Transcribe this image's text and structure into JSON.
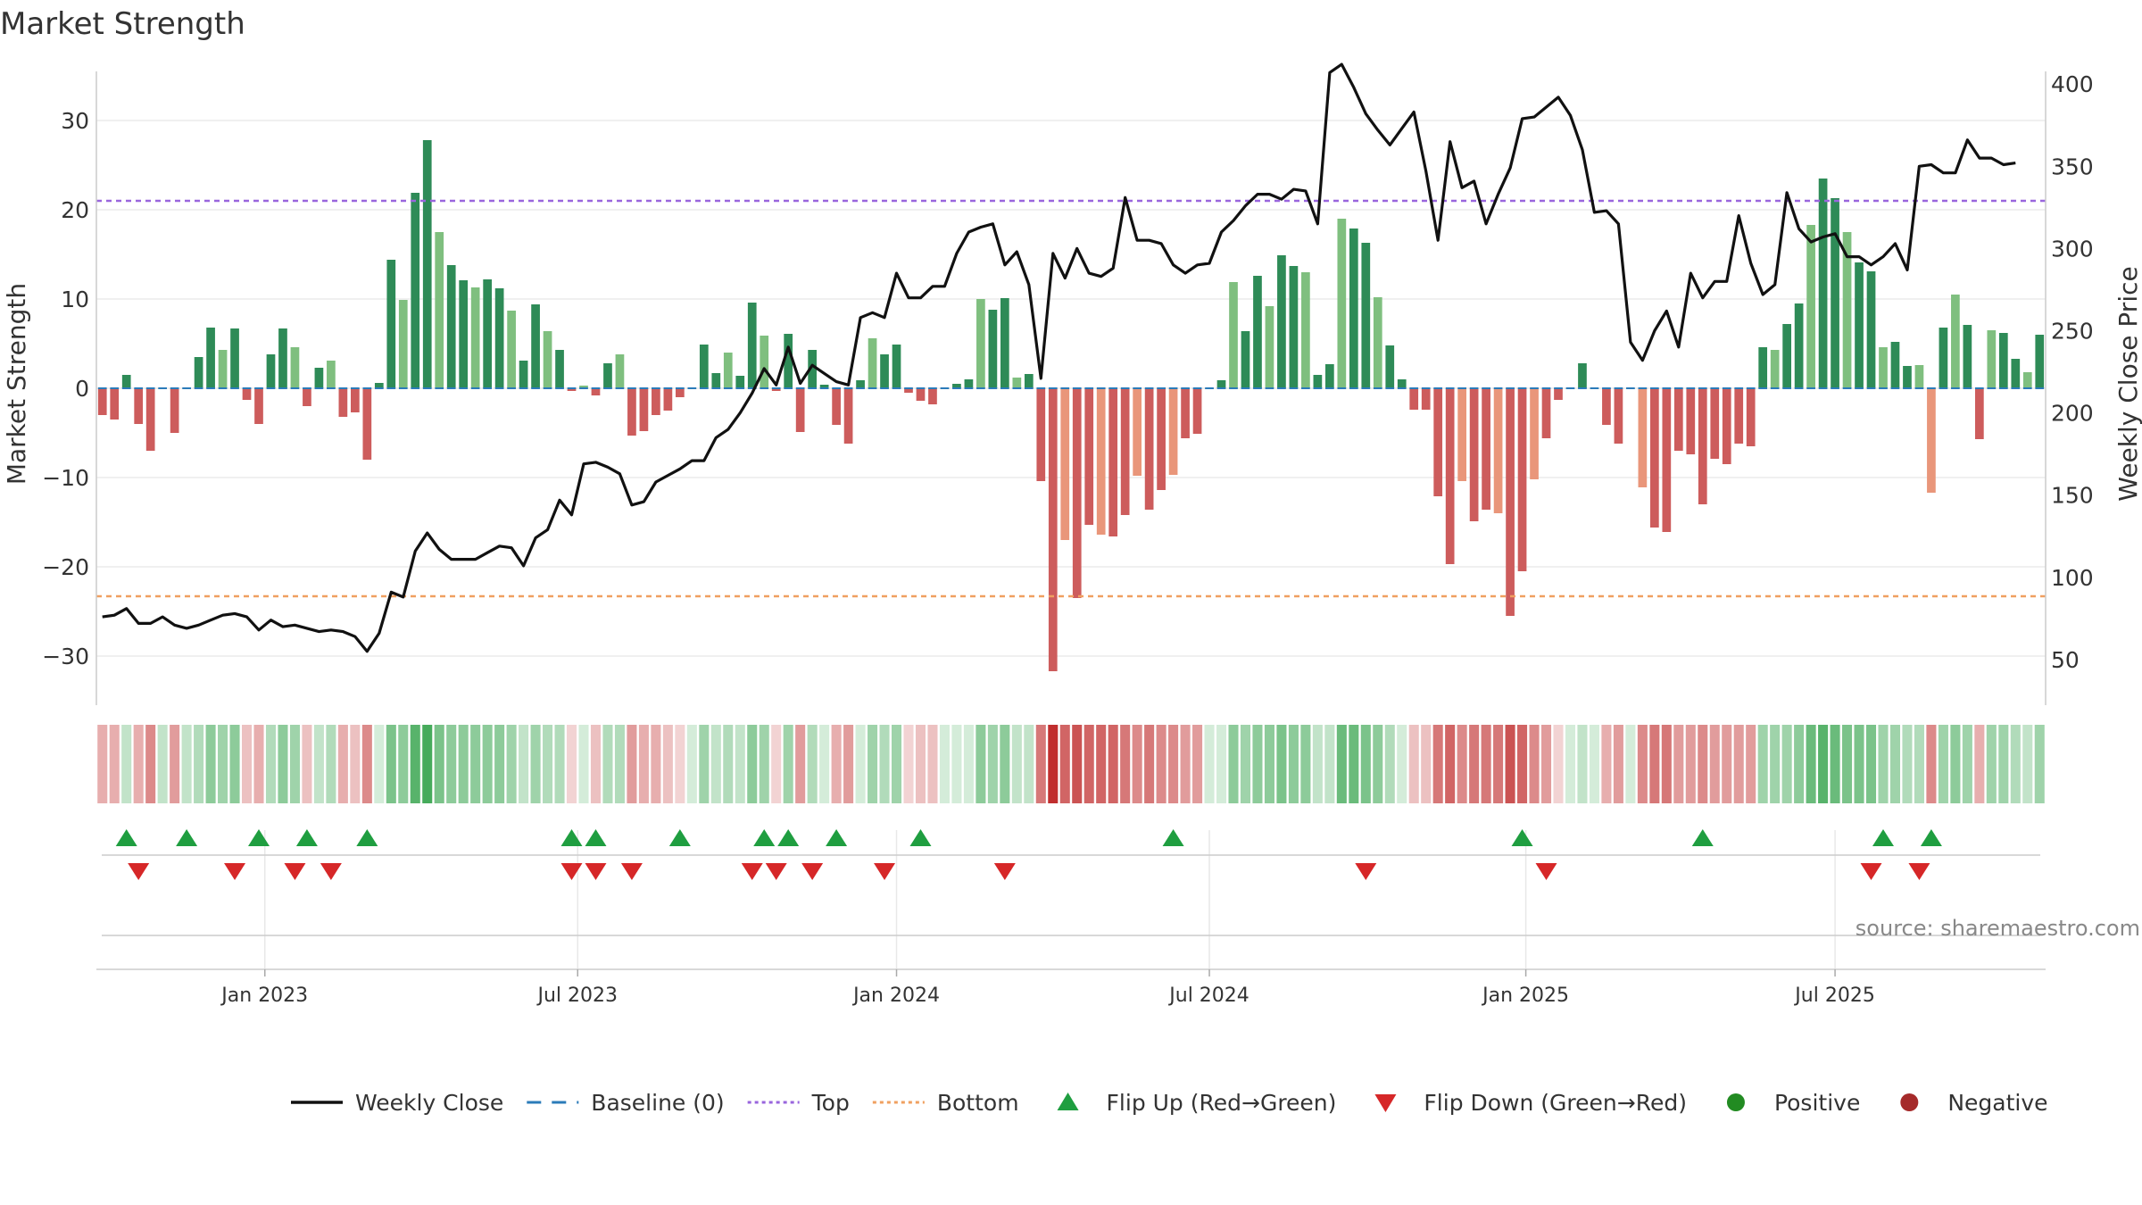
{
  "title": "Market Strength",
  "source": "source: sharemaestro.com",
  "colors": {
    "close": "#111111",
    "baseline": "#2b7bb9",
    "top": "#9966dd",
    "bottom": "#f0a060",
    "pos_strong": "#2e8b57",
    "pos_weak": "#7fbf7f",
    "neg_strong": "#cd5c5c",
    "neg_weak": "#e9967a",
    "flip_up": "#1f9e40",
    "flip_down": "#d62728",
    "positive": "#228b22",
    "negative": "#a52a2a"
  },
  "chart_data": {
    "type": "bar",
    "title": "Market Strength",
    "ylabel": "Market Strength",
    "y2label": "Weekly Close Price",
    "ylim": [
      -35,
      35
    ],
    "y2lim": [
      25,
      405
    ],
    "yticks": [
      30,
      20,
      10,
      0,
      -10,
      -20,
      -30
    ],
    "ytick_labels": [
      "30",
      "20",
      "10",
      "0",
      "−10",
      "−20",
      "−30"
    ],
    "y2ticks": [
      400,
      350,
      300,
      250,
      200,
      150,
      100,
      50
    ],
    "xticks": [
      {
        "label": "Jan 2023",
        "week": 14
      },
      {
        "label": "Jul 2023",
        "week": 40
      },
      {
        "label": "Jan 2024",
        "week": 66.5
      },
      {
        "label": "Jul 2024",
        "week": 92.5
      },
      {
        "label": "Jan 2025",
        "week": 118.8
      },
      {
        "label": "Jul 2025",
        "week": 144.5
      }
    ],
    "top_level": 21,
    "bottom_level": -23.3,
    "grid": true,
    "legend_position": "bottom",
    "legend": [
      {
        "label": "Weekly Close",
        "kind": "line"
      },
      {
        "label": "Baseline (0)",
        "kind": "dash"
      },
      {
        "label": "Top",
        "kind": "dot-top"
      },
      {
        "label": "Bottom",
        "kind": "dot-bottom"
      },
      {
        "label": "Flip Up (Red→Green)",
        "kind": "tri-up"
      },
      {
        "label": "Flip Down (Green→Red)",
        "kind": "tri-down"
      },
      {
        "label": "Positive",
        "kind": "circle-pos"
      },
      {
        "label": "Negative",
        "kind": "circle-neg"
      }
    ],
    "strength": [
      -3,
      -3.5,
      1.5,
      -4,
      -7,
      0,
      -5,
      0,
      3.5,
      6.8,
      4.3,
      6.7,
      -1.3,
      -4,
      3.8,
      6.7,
      4.6,
      -2,
      2.3,
      3.1,
      -3.2,
      -2.7,
      -8,
      0.6,
      14.4,
      9.9,
      21.9,
      27.8,
      17.5,
      13.8,
      12.1,
      11.3,
      12.2,
      11.2,
      8.7,
      3.1,
      9.4,
      6.4,
      4.3,
      -0.3,
      0.3,
      -0.8,
      2.8,
      3.8,
      -5.3,
      -4.8,
      -3,
      -2.5,
      -1,
      0,
      4.9,
      1.7,
      4,
      1.4,
      9.6,
      5.9,
      -0.3,
      6.1,
      -4.9,
      4.3,
      0.4,
      -4.1,
      -6.2,
      0.9,
      5.6,
      3.8,
      4.9,
      -0.5,
      -1.4,
      -1.8,
      0,
      0.5,
      1,
      10,
      8.8,
      10.1,
      1.2,
      1.6,
      -10.4,
      -31.7,
      -17,
      -23.5,
      -15.3,
      -16.4,
      -16.6,
      -14.2,
      -9.8,
      -13.6,
      -11.4,
      -9.7,
      -5.6,
      -5.1,
      0,
      0.9,
      11.9,
      6.4,
      12.6,
      9.2,
      14.9,
      13.7,
      13,
      1.5,
      2.7,
      19,
      17.9,
      16.3,
      10.2,
      4.8,
      1,
      -2.4,
      -2.4,
      -12.1,
      -19.7,
      -10.4,
      -14.9,
      -13.6,
      -14,
      -25.5,
      -20.5,
      -10.2,
      -5.6,
      -1.3,
      0,
      2.8,
      0,
      -4.1,
      -6.2,
      0,
      -11.1,
      -15.6,
      -16.1,
      -7,
      -7.4,
      -13,
      -7.9,
      -8.5,
      -6.2,
      -6.5,
      4.6,
      4.3,
      7.2,
      9.5,
      18.3,
      23.5,
      21.3,
      17.5,
      14.1,
      13.1,
      4.6,
      5.2,
      2.5,
      2.6,
      -11.7,
      6.8,
      10.5,
      7.1,
      -5.7,
      6.5,
      6.2,
      3.3,
      1.8,
      6
    ],
    "weekly_close": [
      76,
      77,
      81,
      72,
      72,
      76,
      71,
      69,
      71,
      74,
      77,
      78,
      76,
      68,
      74,
      70,
      71,
      69,
      67,
      68,
      67,
      64,
      55,
      66,
      91,
      88,
      116,
      127,
      117,
      111,
      111,
      111,
      115,
      119,
      118,
      107,
      124,
      129,
      147,
      138,
      169,
      170,
      167,
      163,
      144,
      146,
      158,
      162,
      166,
      171,
      171,
      185,
      190,
      200,
      212,
      227,
      217,
      240,
      218,
      229,
      224,
      219,
      217,
      258,
      261,
      258,
      285,
      270,
      270,
      277,
      277,
      297,
      310,
      313,
      315,
      290,
      298,
      278,
      221,
      297,
      282,
      300,
      285,
      283,
      288,
      331,
      305,
      305,
      303,
      290,
      285,
      290,
      291,
      310,
      317,
      326,
      333,
      333,
      330,
      336,
      335,
      315,
      407,
      412,
      398,
      382,
      372,
      363,
      373,
      383,
      347,
      305,
      365,
      337,
      341,
      315,
      333,
      349,
      379,
      380,
      386,
      392,
      381,
      360,
      322,
      323,
      315,
      243,
      232,
      250,
      262,
      240,
      285,
      270,
      280,
      280,
      320,
      291,
      272,
      278,
      334,
      312,
      304,
      307,
      309,
      295,
      295,
      290,
      295,
      303,
      287,
      350,
      351,
      346,
      346,
      366,
      355,
      355,
      351,
      352
    ],
    "heat": [
      -0.3,
      -0.3,
      0.2,
      -0.3,
      -0.5,
      0.2,
      -0.4,
      0.2,
      0.3,
      0.5,
      0.4,
      0.5,
      -0.2,
      -0.3,
      0.3,
      0.5,
      0.4,
      -0.2,
      0.2,
      0.3,
      -0.3,
      -0.2,
      -0.5,
      0.1,
      0.6,
      0.5,
      0.8,
      0.9,
      0.6,
      0.5,
      0.5,
      0.5,
      0.5,
      0.5,
      0.4,
      0.2,
      0.4,
      0.3,
      0.3,
      -0.1,
      0.1,
      -0.2,
      0.3,
      0.3,
      -0.4,
      -0.3,
      -0.3,
      -0.2,
      -0.1,
      0.1,
      0.4,
      0.2,
      0.3,
      0.2,
      0.5,
      0.4,
      -0.1,
      0.4,
      -0.4,
      0.3,
      0.1,
      -0.3,
      -0.4,
      0.1,
      0.4,
      0.3,
      0.4,
      -0.1,
      -0.2,
      -0.2,
      0.1,
      0.1,
      0.1,
      0.5,
      0.4,
      0.5,
      0.2,
      0.2,
      -0.6,
      -1,
      -0.7,
      -0.8,
      -0.7,
      -0.7,
      -0.7,
      -0.6,
      -0.5,
      -0.6,
      -0.5,
      -0.5,
      -0.4,
      -0.4,
      0.1,
      0.1,
      0.5,
      0.4,
      0.5,
      0.5,
      0.6,
      0.5,
      0.5,
      0.2,
      0.2,
      0.7,
      0.7,
      0.6,
      0.5,
      0.3,
      0.1,
      -0.2,
      -0.2,
      -0.6,
      -0.7,
      -0.5,
      -0.6,
      -0.6,
      -0.6,
      -0.8,
      -0.7,
      -0.5,
      -0.4,
      -0.1,
      0.1,
      0.2,
      0.1,
      -0.3,
      -0.4,
      0.1,
      -0.5,
      -0.6,
      -0.6,
      -0.4,
      -0.4,
      -0.5,
      -0.4,
      -0.4,
      -0.4,
      -0.4,
      0.4,
      0.4,
      0.4,
      0.5,
      0.7,
      0.8,
      0.7,
      0.6,
      0.6,
      0.6,
      0.4,
      0.4,
      0.3,
      0.3,
      -0.5,
      0.4,
      0.5,
      0.4,
      -0.3,
      0.4,
      0.4,
      0.3,
      0.2,
      0.4
    ],
    "flip_up_weeks": [
      2,
      7,
      13,
      17,
      22,
      39,
      41,
      48,
      55,
      57,
      61,
      68,
      89,
      118,
      133,
      148,
      152
    ],
    "flip_down_weeks": [
      3,
      11,
      16,
      19,
      39,
      41,
      44,
      54,
      56,
      59,
      65,
      75,
      105,
      120,
      147,
      151
    ]
  }
}
